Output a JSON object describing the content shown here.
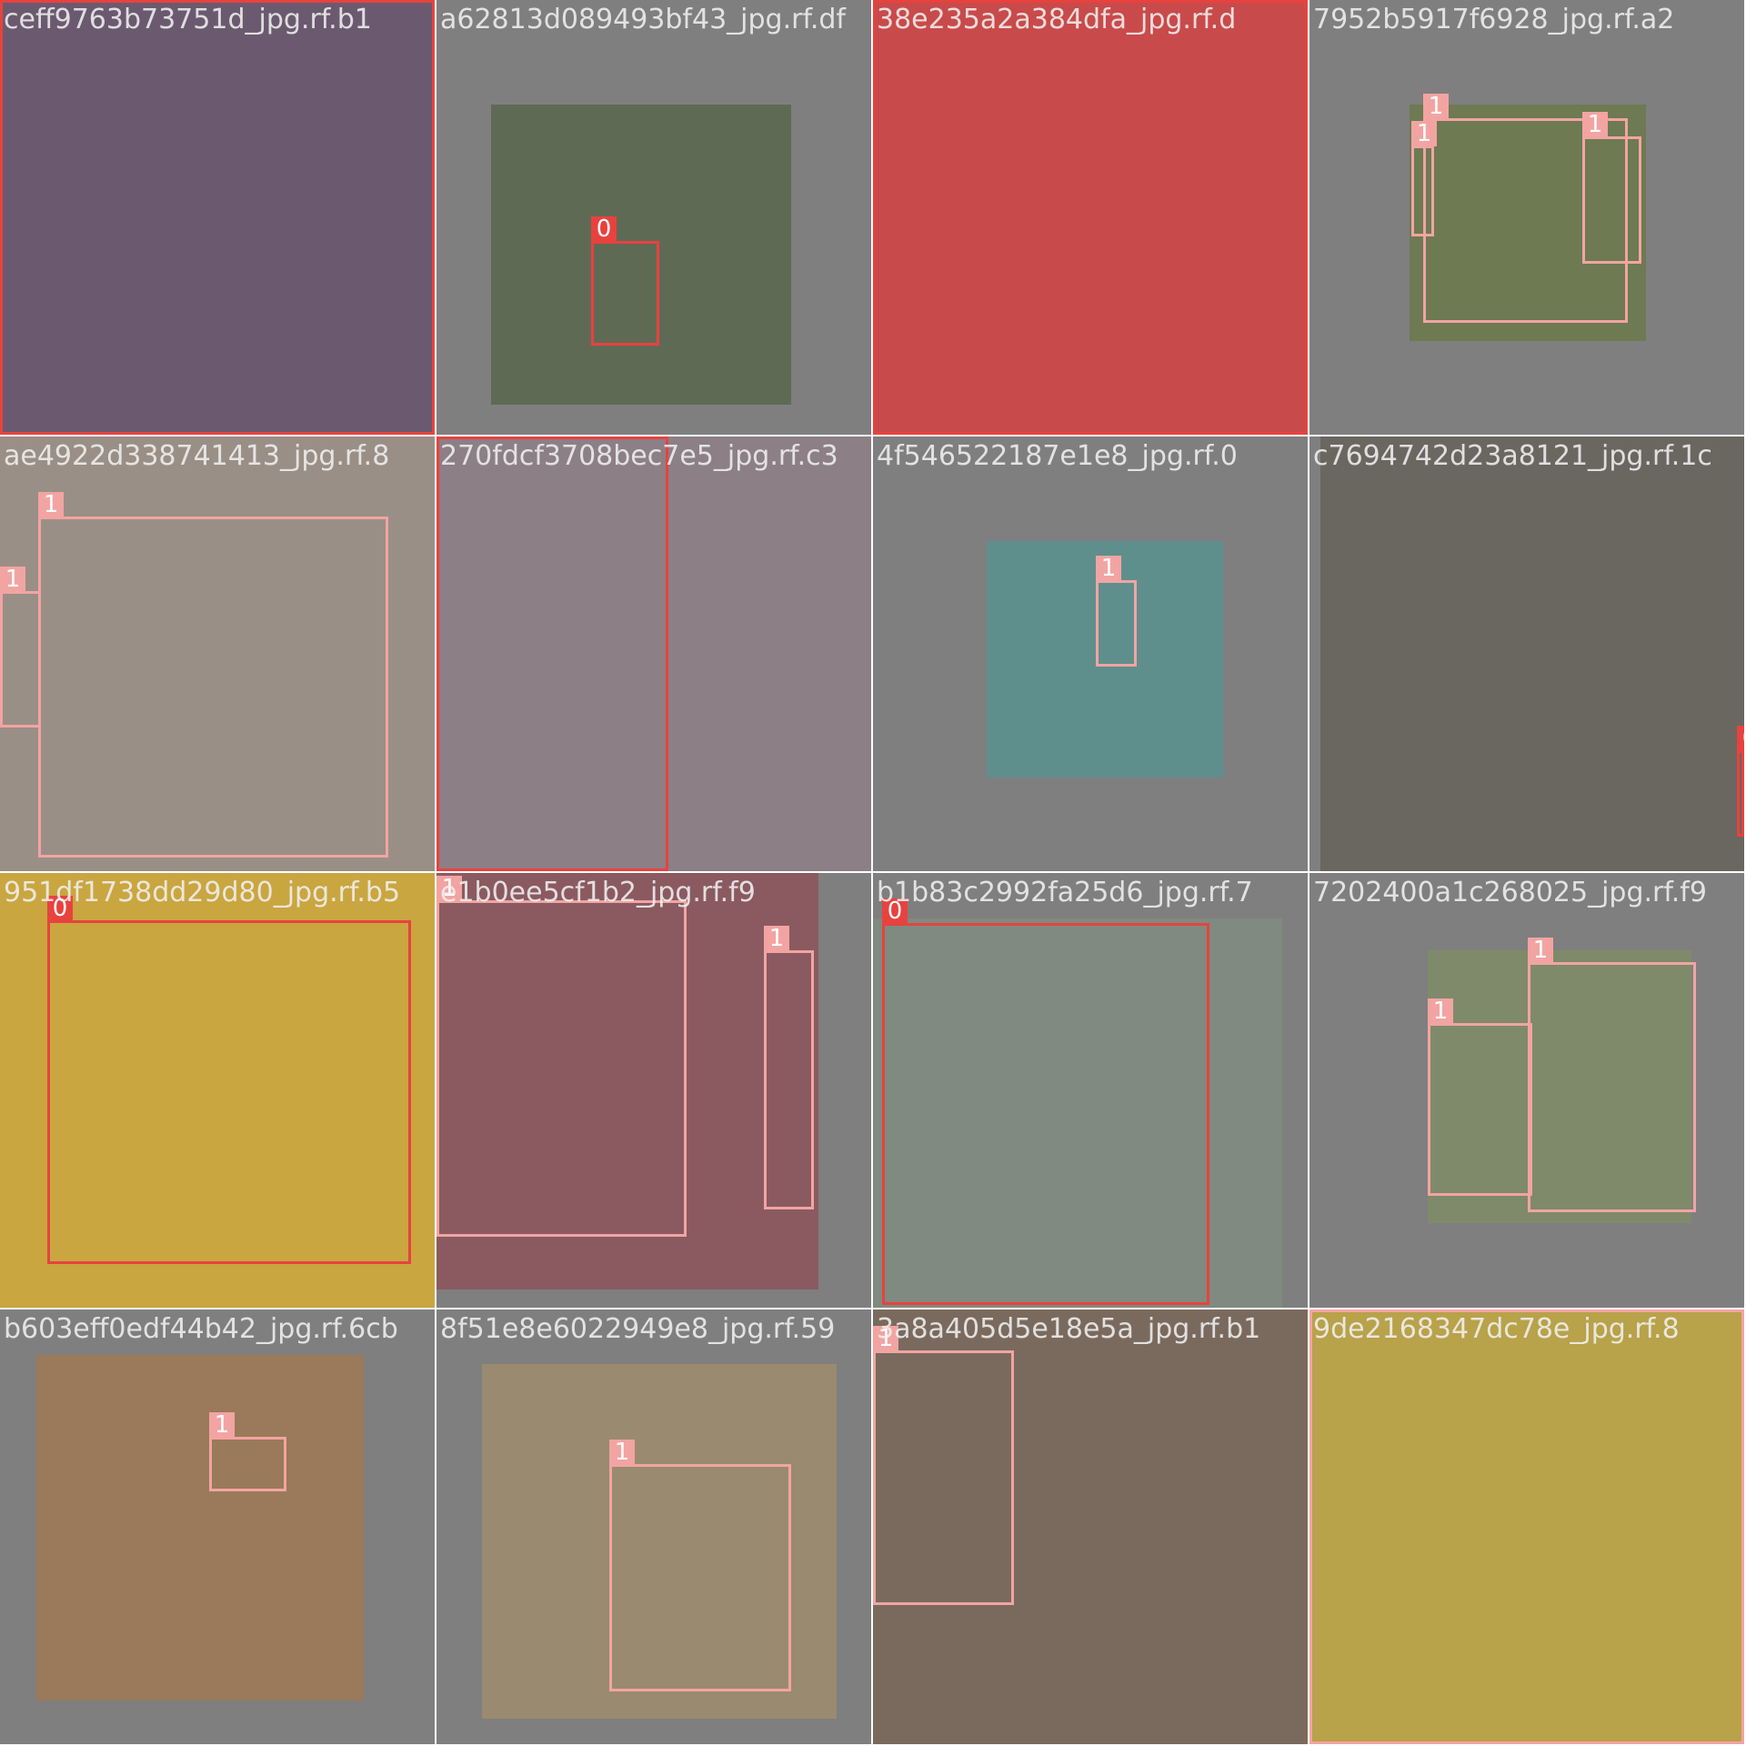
{
  "class_colors": {
    "0": "#e8423f",
    "1": "#f2a4a2"
  },
  "tiles": [
    {
      "filename": "ceff9763b73751d_jpg.rf.b1",
      "photo_color": "#6b5a6f",
      "boxes": [
        {
          "cls": "0"
        }
      ]
    },
    {
      "filename": "a62813d089493bf43_jpg.rf.df",
      "photo_color": "#5f6a55",
      "boxes": [
        {
          "cls": "0"
        }
      ]
    },
    {
      "filename": "38e235a2a384dfa_jpg.rf.d",
      "photo_color": "#c94a4a",
      "boxes": [
        {
          "cls": "0"
        }
      ]
    },
    {
      "filename": "7952b5917f6928_jpg.rf.a2",
      "photo_color": "#6d7a52",
      "boxes": [
        {
          "cls": "1"
        },
        {
          "cls": "1"
        },
        {
          "cls": "1"
        }
      ]
    },
    {
      "filename": "ae4922d338741413_jpg.rf.8",
      "photo_color": "#9a8f86",
      "boxes": [
        {
          "cls": "1"
        },
        {
          "cls": "1"
        }
      ]
    },
    {
      "filename": "270fdcf3708bec7e5_jpg.rf.c3",
      "photo_color": "#8c7f86",
      "boxes": [
        {
          "cls": "0"
        }
      ]
    },
    {
      "filename": "4f546522187e1e8_jpg.rf.0",
      "photo_color": "#5f8f8c",
      "boxes": [
        {
          "cls": "1"
        }
      ]
    },
    {
      "filename": "c7694742d23a8121_jpg.rf.1c",
      "photo_color": "#6a6660",
      "boxes": [
        {
          "cls": "0"
        }
      ]
    },
    {
      "filename": "951df1738dd29d80_jpg.rf.b5",
      "photo_color": "#c9a640",
      "boxes": [
        {
          "cls": "0"
        }
      ]
    },
    {
      "filename": "e1b0ee5cf1b2_jpg.rf.f9",
      "photo_color": "#8a5a60",
      "boxes": [
        {
          "cls": "1"
        },
        {
          "cls": "1"
        }
      ]
    },
    {
      "filename": "b1b83c2992fa25d6_jpg.rf.7",
      "photo_color": "#808a80",
      "boxes": [
        {
          "cls": "0"
        }
      ]
    },
    {
      "filename": "7202400a1c268025_jpg.rf.f9",
      "photo_color": "#7f8a6a",
      "boxes": [
        {
          "cls": "1"
        },
        {
          "cls": "1"
        }
      ]
    },
    {
      "filename": "b603eff0edf44b42_jpg.rf.6cb",
      "photo_color": "#9a7a5a",
      "boxes": [
        {
          "cls": "1"
        }
      ]
    },
    {
      "filename": "8f51e8e6022949e8_jpg.rf.59",
      "photo_color": "#9a8a70",
      "boxes": [
        {
          "cls": "1"
        }
      ]
    },
    {
      "filename": "3a8a405d5e18e5a_jpg.rf.b1",
      "photo_color": "#7a6a5e",
      "boxes": [
        {
          "cls": "1"
        }
      ]
    },
    {
      "filename": "9de2168347dc78e_jpg.rf.8",
      "photo_color": "#b8a24a",
      "boxes": [
        {
          "cls": "1"
        }
      ]
    }
  ]
}
